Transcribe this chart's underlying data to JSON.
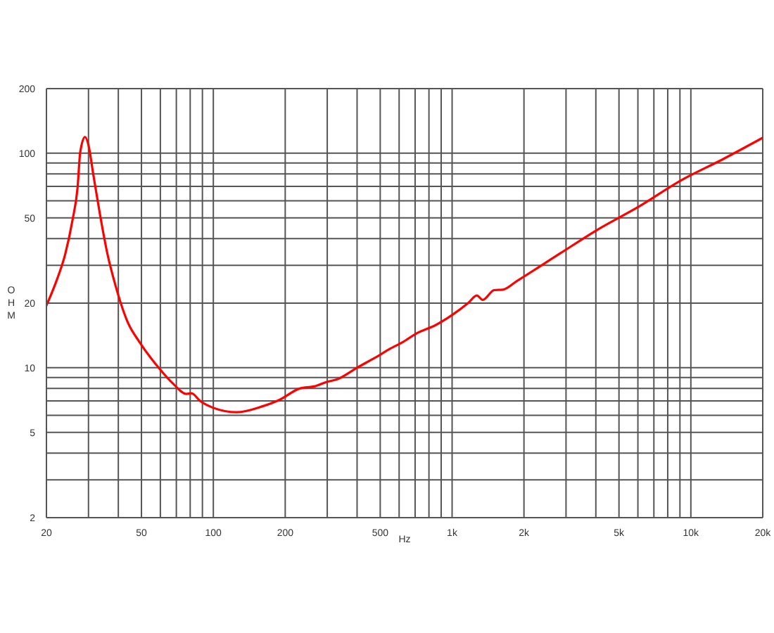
{
  "chart_data": {
    "type": "line",
    "xlabel": "Hz",
    "ylabel": "OHM",
    "x": [
      20,
      22,
      24,
      25.7,
      27,
      27.7,
      29,
      30,
      31.4,
      33.6,
      36,
      39,
      44,
      49,
      59,
      68,
      77,
      81,
      88,
      100,
      125,
      160,
      190,
      230,
      267,
      300,
      327,
      400,
      500,
      546,
      624,
      713,
      853,
      1000,
      1166,
      1270,
      1343,
      1500,
      1630,
      1863,
      2845,
      4065,
      6080,
      9080,
      13560,
      20000
    ],
    "values": [
      19.5,
      25.3,
      34,
      48.6,
      69,
      101,
      119,
      109,
      80,
      51,
      34,
      24,
      16.1,
      13.2,
      10,
      8.4,
      7.55,
      7.6,
      7.0,
      6.5,
      6.2,
      6.6,
      7.1,
      8.0,
      8.2,
      8.6,
      8.8,
      10,
      11.5,
      12.2,
      13.2,
      14.5,
      15.8,
      17.6,
      20,
      21.7,
      20.7,
      23,
      23.1,
      25.3,
      34.2,
      44,
      56.5,
      74.6,
      93.5,
      118
    ],
    "color": "#ff0000",
    "line_style": "solid",
    "marker": "none",
    "log": "xy",
    "grid": true,
    "xlim": [
      20,
      20000
    ],
    "xticks": [
      20,
      {
        "value": 30,
        "label": null
      },
      {
        "value": 40,
        "label": null
      },
      50,
      {
        "value": 60,
        "label": null
      },
      {
        "value": 70,
        "label": null
      },
      {
        "value": 80,
        "label": null
      },
      {
        "value": 90,
        "label": null
      },
      100,
      200,
      {
        "value": 300,
        "label": null
      },
      {
        "value": 400,
        "label": null
      },
      500,
      {
        "value": 600,
        "label": null
      },
      {
        "value": 700,
        "label": null
      },
      {
        "value": 800,
        "label": null
      },
      {
        "value": 900,
        "label": null
      },
      {
        "value": 1000,
        "label": "1k"
      },
      {
        "value": 2000,
        "label": "2k"
      },
      {
        "value": 3000,
        "label": null
      },
      {
        "value": 4000,
        "label": null
      },
      {
        "value": 5000,
        "label": "5k"
      },
      {
        "value": 6000,
        "label": null
      },
      {
        "value": 7000,
        "label": null
      },
      {
        "value": 8000,
        "label": null
      },
      {
        "value": 9000,
        "label": null
      },
      {
        "value": 10000,
        "label": "10k"
      },
      {
        "value": 20000,
        "label": "20k"
      }
    ],
    "ylim": [
      2,
      200
    ],
    "yticks": [
      2,
      {
        "value": 3,
        "label": null
      },
      {
        "value": 4,
        "label": null
      },
      5,
      {
        "value": 6,
        "label": null
      },
      {
        "value": 7,
        "label": null
      },
      {
        "value": 8,
        "label": null
      },
      {
        "value": 9,
        "label": null
      },
      10,
      20,
      {
        "value": 30,
        "label": null
      },
      {
        "value": 40,
        "label": null
      },
      50,
      {
        "value": 60,
        "label": null
      },
      {
        "value": 70,
        "label": null
      },
      {
        "value": 80,
        "label": null
      },
      {
        "value": 90,
        "label": null
      },
      100,
      200
    ]
  }
}
